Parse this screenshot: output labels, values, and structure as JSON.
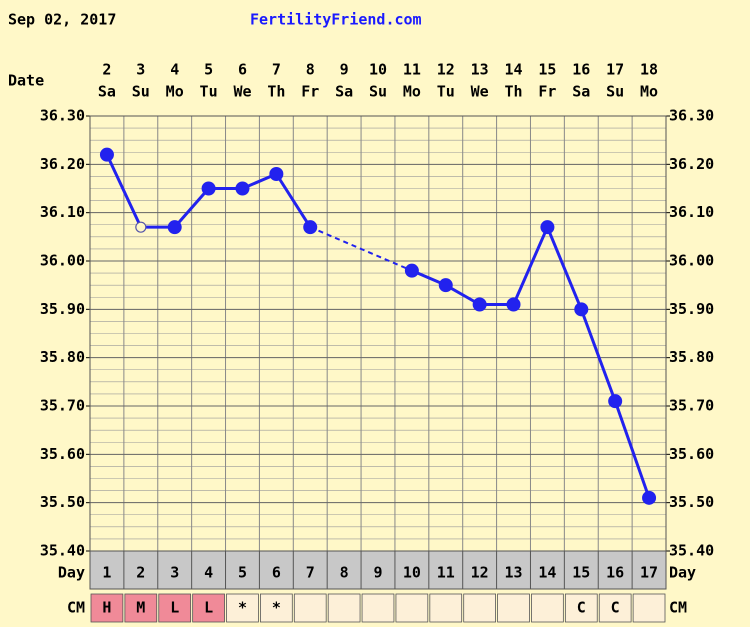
{
  "chart_data": {
    "type": "line",
    "title": "Sep 02, 2017",
    "source": "FertilityFriend.com",
    "date_label": "Date",
    "day_label": "Day",
    "cm_label": "CM",
    "dates": [
      2,
      3,
      4,
      5,
      6,
      7,
      8,
      9,
      10,
      11,
      12,
      13,
      14,
      15,
      16,
      17,
      18
    ],
    "weekdays": [
      "Sa",
      "Su",
      "Mo",
      "Tu",
      "We",
      "Th",
      "Fr",
      "Sa",
      "Su",
      "Mo",
      "Tu",
      "We",
      "Th",
      "Fr",
      "Sa",
      "Su",
      "Mo"
    ],
    "categories": [
      1,
      2,
      3,
      4,
      5,
      6,
      7,
      8,
      9,
      10,
      11,
      12,
      13,
      14,
      15,
      16,
      17
    ],
    "series": [
      {
        "color": "#2222ee",
        "values": [
          36.22,
          36.07,
          36.07,
          36.15,
          36.15,
          36.18,
          36.07,
          null,
          null,
          35.98,
          35.95,
          35.91,
          35.91,
          36.07,
          35.9,
          35.71,
          35.51
        ],
        "markers": [
          "filled",
          "open",
          "filled",
          "filled",
          "filled",
          "filled",
          "filled",
          null,
          null,
          "filled",
          "filled",
          "filled",
          "filled",
          "filled",
          "filled",
          "filled",
          "filled"
        ]
      }
    ],
    "gap_style": "dashed",
    "cm": [
      "H",
      "M",
      "L",
      "L",
      "*",
      "*",
      null,
      null,
      null,
      null,
      null,
      null,
      null,
      null,
      "C",
      "C",
      null
    ],
    "cm_colors": [
      "#f08a98",
      "#f08a98",
      "#f08a98",
      "#f08a98",
      null,
      null,
      null,
      null,
      null,
      null,
      null,
      null,
      null,
      null,
      null,
      null,
      null
    ],
    "ylim": [
      35.4,
      36.3
    ],
    "yticks": [
      {
        "value": 35.4,
        "label": "35.40"
      },
      {
        "value": 35.5,
        "label": "35.50"
      },
      {
        "value": 35.6,
        "label": "35.60"
      },
      {
        "value": 35.7,
        "label": "35.70"
      },
      {
        "value": 35.8,
        "label": "35.80"
      },
      {
        "value": 35.9,
        "label": "35.90"
      },
      {
        "value": 36.0,
        "label": "36.00"
      },
      {
        "value": 36.1,
        "label": "36.10"
      },
      {
        "value": 36.2,
        "label": "36.20"
      },
      {
        "value": 36.3,
        "label": "36.30"
      }
    ],
    "grid": true
  }
}
